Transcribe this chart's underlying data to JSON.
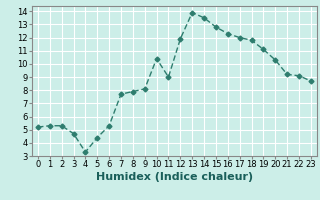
{
  "x": [
    0,
    1,
    2,
    3,
    4,
    5,
    6,
    7,
    8,
    9,
    10,
    11,
    12,
    13,
    14,
    15,
    16,
    17,
    18,
    19,
    20,
    21,
    22,
    23
  ],
  "y": [
    5.2,
    5.3,
    5.3,
    4.7,
    3.3,
    4.4,
    5.3,
    7.7,
    7.9,
    8.1,
    10.4,
    9.0,
    11.9,
    13.9,
    13.5,
    12.8,
    12.3,
    12.0,
    11.8,
    11.1,
    10.3,
    9.2,
    9.1,
    8.7
  ],
  "xlabel": "Humidex (Indice chaleur)",
  "xlim": [
    -0.5,
    23.5
  ],
  "ylim": [
    3,
    14.4
  ],
  "yticks": [
    3,
    4,
    5,
    6,
    7,
    8,
    9,
    10,
    11,
    12,
    13,
    14
  ],
  "xtick_labels": [
    "0",
    "1",
    "2",
    "3",
    "4",
    "5",
    "6",
    "7",
    "8",
    "9",
    "10",
    "11",
    "12",
    "13",
    "14",
    "15",
    "16",
    "17",
    "18",
    "19",
    "20",
    "21",
    "22",
    "23"
  ],
  "line_color": "#2e7d6e",
  "marker": "D",
  "marker_size": 2.5,
  "bg_color": "#cceee8",
  "grid_color": "#ffffff",
  "axis_fontsize": 7,
  "tick_fontsize": 6,
  "xlabel_fontsize": 8
}
